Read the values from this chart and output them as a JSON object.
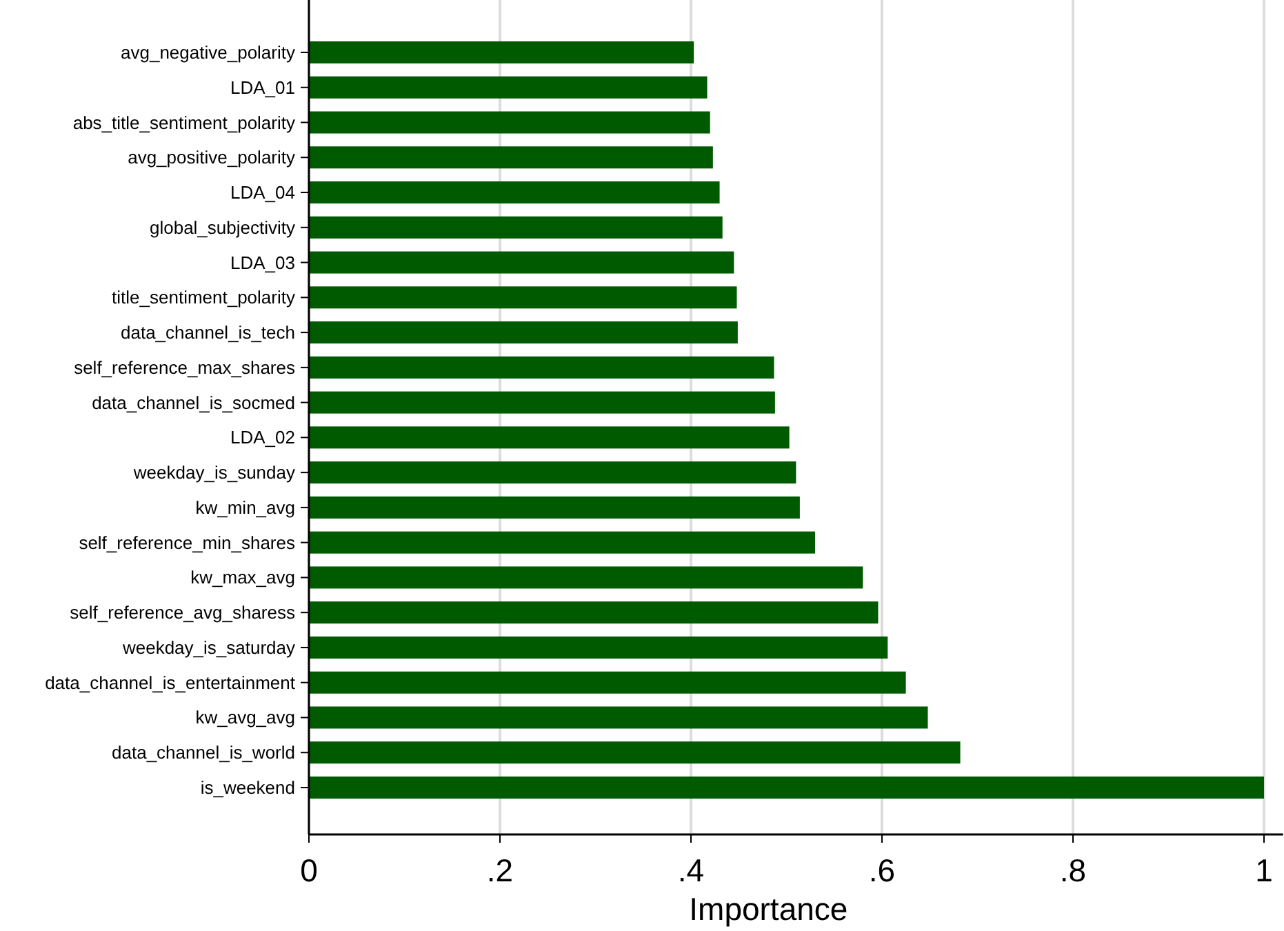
{
  "chart_data": {
    "type": "bar",
    "orientation": "horizontal",
    "xlabel": "Importance",
    "categories": [
      "avg_negative_polarity",
      "LDA_01",
      "abs_title_sentiment_polarity",
      "avg_positive_polarity",
      "LDA_04",
      "global_subjectivity",
      "LDA_03",
      "title_sentiment_polarity",
      "data_channel_is_tech",
      "self_reference_max_shares",
      "data_channel_is_socmed",
      "LDA_02",
      "weekday_is_sunday",
      "kw_min_avg",
      "self_reference_min_shares",
      "kw_max_avg",
      "self_reference_avg_sharess",
      "weekday_is_saturday",
      "data_channel_is_entertainment",
      "kw_avg_avg",
      "data_channel_is_world",
      "is_weekend"
    ],
    "values": [
      0.403,
      0.417,
      0.42,
      0.423,
      0.43,
      0.433,
      0.445,
      0.448,
      0.449,
      0.487,
      0.488,
      0.503,
      0.51,
      0.514,
      0.53,
      0.58,
      0.596,
      0.606,
      0.625,
      0.648,
      0.682,
      1
    ],
    "color": "#005a00",
    "xlim": [
      0,
      1.02
    ],
    "xticks": [
      0,
      {
        "value": 0.2,
        "label": ".2"
      },
      {
        "value": 0.4,
        "label": ".4"
      },
      {
        "value": 0.6,
        "label": ".6"
      },
      {
        "value": 0.8,
        "label": ".8"
      },
      1
    ],
    "grid": "x"
  }
}
